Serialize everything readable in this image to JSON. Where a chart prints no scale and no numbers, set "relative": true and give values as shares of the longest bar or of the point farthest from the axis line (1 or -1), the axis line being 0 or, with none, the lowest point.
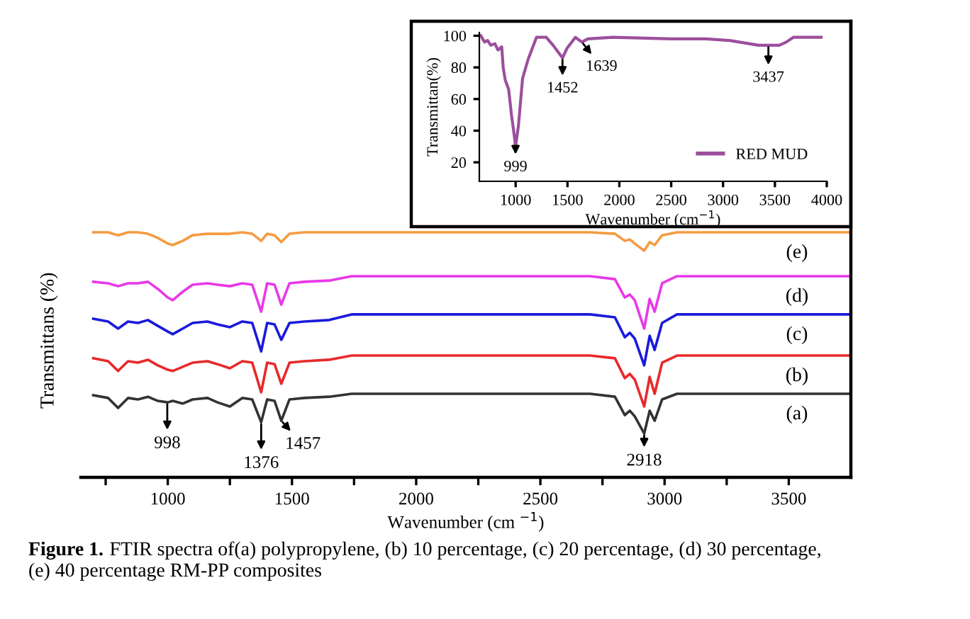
{
  "chart_data": [
    {
      "type": "line",
      "relative": true,
      "xlabel": "Wavenumber (cm $^{−1}$)",
      "ylabel": "Transmittans (%)",
      "xlim": [
        650,
        3750
      ],
      "xticks": [
        {
          "value": 750,
          "label": null
        },
        1000,
        {
          "value": 1250,
          "label": null
        },
        1500,
        {
          "value": 1750,
          "label": null
        },
        2000,
        {
          "value": 2250,
          "label": null
        },
        2500,
        {
          "value": 2750,
          "label": null
        },
        3000,
        {
          "value": 3250,
          "label": null
        },
        3500
      ],
      "tick_labels": "x",
      "grid": false,
      "legend": false,
      "x": [
        700,
        760,
        800,
        840,
        880,
        920,
        960,
        1000,
        1020,
        1060,
        1100,
        1160,
        1200,
        1250,
        1300,
        1340,
        1376,
        1400,
        1430,
        1457,
        1490,
        1550,
        1650,
        1740,
        1800,
        2000,
        2400,
        2700,
        2800,
        2840,
        2860,
        2880,
        2918,
        2940,
        2960,
        2990,
        3050,
        3200,
        3500,
        3750
      ],
      "series": [
        {
          "name": "(a)",
          "color": "#333333",
          "values": [
            0.335,
            0.324,
            0.283,
            0.324,
            0.318,
            0.329,
            0.312,
            0.306,
            0.312,
            0.301,
            0.318,
            0.324,
            0.306,
            0.289,
            0.324,
            0.318,
            0.225,
            0.318,
            0.312,
            0.231,
            0.318,
            0.324,
            0.329,
            0.341,
            0.341,
            0.341,
            0.341,
            0.341,
            0.329,
            0.254,
            0.272,
            0.249,
            0.179,
            0.272,
            0.231,
            0.318,
            0.341,
            0.341,
            0.341,
            0.341
          ]
        },
        {
          "name": "(b)",
          "color": "#e8292b",
          "values": [
            0.486,
            0.474,
            0.434,
            0.474,
            0.468,
            0.48,
            0.457,
            0.439,
            0.434,
            0.451,
            0.468,
            0.474,
            0.462,
            0.445,
            0.474,
            0.468,
            0.347,
            0.468,
            0.462,
            0.382,
            0.468,
            0.474,
            0.48,
            0.497,
            0.497,
            0.497,
            0.497,
            0.497,
            0.486,
            0.405,
            0.422,
            0.399,
            0.289,
            0.41,
            0.341,
            0.468,
            0.497,
            0.497,
            0.497,
            0.497
          ]
        },
        {
          "name": "(c)",
          "color": "#1a1adb",
          "values": [
            0.647,
            0.636,
            0.607,
            0.636,
            0.63,
            0.642,
            0.618,
            0.595,
            0.584,
            0.607,
            0.63,
            0.636,
            0.624,
            0.613,
            0.636,
            0.63,
            0.514,
            0.63,
            0.624,
            0.561,
            0.63,
            0.636,
            0.642,
            0.665,
            0.665,
            0.665,
            0.665,
            0.665,
            0.653,
            0.572,
            0.59,
            0.566,
            0.457,
            0.578,
            0.52,
            0.63,
            0.665,
            0.665,
            0.665,
            0.665
          ]
        },
        {
          "name": "(d)",
          "color": "#e838e8",
          "values": [
            0.798,
            0.792,
            0.78,
            0.792,
            0.792,
            0.798,
            0.769,
            0.734,
            0.723,
            0.757,
            0.786,
            0.792,
            0.786,
            0.78,
            0.792,
            0.786,
            0.676,
            0.792,
            0.786,
            0.705,
            0.792,
            0.798,
            0.803,
            0.821,
            0.821,
            0.821,
            0.821,
            0.821,
            0.809,
            0.734,
            0.746,
            0.723,
            0.607,
            0.728,
            0.676,
            0.792,
            0.821,
            0.821,
            0.821,
            0.821
          ]
        },
        {
          "name": "(e)",
          "color": "#f59b42",
          "values": [
            1.0,
            1.0,
            0.988,
            1.0,
            1.0,
            0.994,
            0.977,
            0.954,
            0.948,
            0.965,
            0.988,
            0.994,
            0.994,
            0.994,
            1.0,
            0.994,
            0.965,
            0.994,
            0.988,
            0.96,
            0.994,
            1.0,
            1.0,
            1.0,
            1.0,
            1.0,
            1.0,
            1.0,
            0.994,
            0.965,
            0.971,
            0.954,
            0.925,
            0.96,
            0.948,
            0.988,
            1.0,
            1.0,
            1.0,
            1.0
          ]
        }
      ],
      "annotations": [
        {
          "text": "998",
          "x": 998,
          "y": 0.306
        },
        {
          "text": "1376",
          "x": 1376,
          "y": 0.225
        },
        {
          "text": "1457",
          "x": 1457,
          "y": 0.231
        },
        {
          "text": "2918",
          "x": 2918,
          "y": 0.179
        },
        "Figure 1.",
        "FTIR spectra of(a) polypropylene, (b) 10 percentage, (c) 20 percentage, (d) 30 percentage,",
        "(e) 40 percentage RM-PP composites"
      ]
    },
    {
      "type": "line",
      "xlabel": "Wavenumber (cm$^{−1}$)",
      "ylabel": "Transmittan(%)",
      "xlim": [
        650,
        4000
      ],
      "ylim": [
        8,
        102
      ],
      "xticks": [
        1000,
        1500,
        2000,
        2500,
        3000,
        3500,
        4000
      ],
      "yticks": [
        20,
        40,
        60,
        80,
        100
      ],
      "grid": false,
      "legend": "bottom right",
      "x": [
        665,
        700,
        730,
        760,
        800,
        830,
        866,
        880,
        900,
        933,
        960,
        987,
        999,
        1027,
        1067,
        1120,
        1201,
        1295,
        1361,
        1452,
        1495,
        1576,
        1639,
        1696,
        1937,
        2500,
        2834,
        3062,
        3343,
        3437,
        3543,
        3610,
        3677,
        3945
      ],
      "series": [
        {
          "name": "RED MUD",
          "color": "#9c4f9c",
          "values": [
            100,
            96,
            97,
            94,
            95,
            91,
            93,
            80,
            72,
            66,
            50,
            37,
            30,
            43,
            73,
            85,
            99,
            99,
            94,
            86,
            92,
            99,
            96,
            98,
            99,
            98,
            98,
            97,
            94,
            94,
            94,
            96,
            99,
            99
          ]
        }
      ],
      "annotations": [
        {
          "text": "999",
          "x": 999,
          "y": 30
        },
        {
          "text": "1452",
          "x": 1452,
          "y": 86
        },
        {
          "text": "1639",
          "x": 1639,
          "y": 96
        },
        {
          "text": "3437",
          "x": 3437,
          "y": 94
        }
      ]
    }
  ]
}
